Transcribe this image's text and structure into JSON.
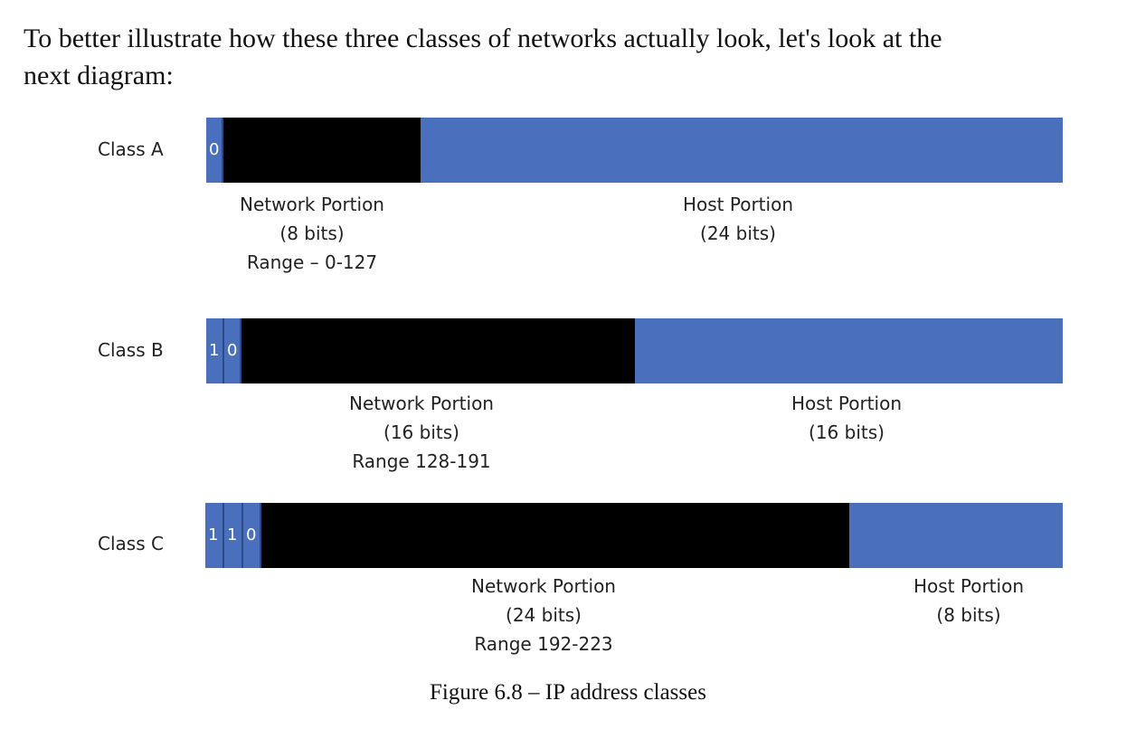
{
  "intro": {
    "line1": "To better illustrate how these three classes of networks actually look, let's look at the",
    "line2": "next diagram:"
  },
  "diagram": {
    "colors": {
      "network": "#000000",
      "host": "#4a70bd",
      "bit": "#4a70bd"
    },
    "classes": [
      {
        "label": "Class A",
        "bits": [
          "0"
        ],
        "network": {
          "title": "Network Portion",
          "bits": "(8 bits)",
          "range": "Range – 0-127"
        },
        "host": {
          "title": "Host Portion",
          "bits": "(24 bits)"
        }
      },
      {
        "label": "Class B",
        "bits": [
          "1",
          "0"
        ],
        "network": {
          "title": "Network Portion",
          "bits": "(16 bits)",
          "range": "Range 128-191"
        },
        "host": {
          "title": "Host Portion",
          "bits": "(16 bits)"
        }
      },
      {
        "label": "Class C",
        "bits": [
          "1",
          "1",
          "0"
        ],
        "network": {
          "title": "Network Portion",
          "bits": "(24 bits)",
          "range": "Range 192-223"
        },
        "host": {
          "title": "Host Portion",
          "bits": "(8 bits)"
        }
      }
    ]
  },
  "caption": "Figure 6.8 – IP address classes"
}
